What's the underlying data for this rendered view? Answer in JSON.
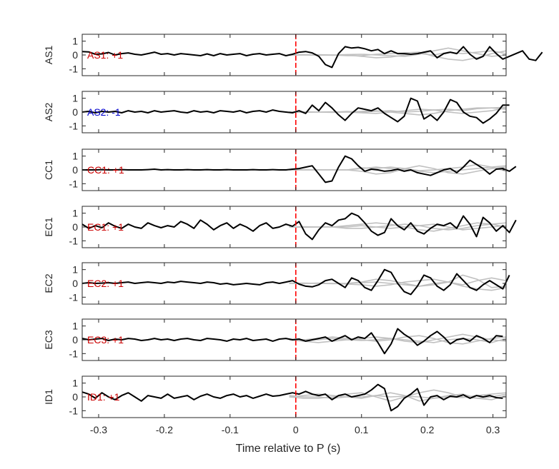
{
  "colors": {
    "main_trace": "#000000",
    "background_traces": "#c0c0c0",
    "marker_line": "#ff0000",
    "positive_annotation": "#cc0000",
    "negative_annotation": "#0000cc",
    "axis": "#262626"
  },
  "chart_data": {
    "type": "line",
    "layout": "stacked-panels",
    "xlabel": "Time relative to P (s)",
    "xlim": [
      -0.325,
      0.32
    ],
    "xticks": [
      -0.3,
      -0.2,
      -0.1,
      0,
      0.1,
      0.2,
      0.3
    ],
    "xtick_labels": [
      "-0.3",
      "-0.2",
      "-0.1",
      "0",
      "0.1",
      "0.2",
      "0.3"
    ],
    "ylim": [
      -1.5,
      1.5
    ],
    "yticks": [
      -1,
      0,
      1
    ],
    "ytick_labels": [
      "-1",
      "0",
      "1"
    ],
    "marker_x": 0,
    "x_start": -0.325,
    "x_step": 0.01,
    "panels": [
      {
        "ylabel": "AS1",
        "annotation": "AS1: +1",
        "polarity": "positive",
        "main": [
          0.25,
          0.22,
          0.05,
          0.08,
          0.18,
          0.0,
          0.1,
          0.15,
          0.05,
          0.0,
          0.1,
          0.2,
          0.05,
          0.1,
          0.0,
          0.1,
          0.05,
          0.0,
          -0.05,
          0.08,
          -0.05,
          0.1,
          0.0,
          0.05,
          0.1,
          -0.05,
          0.05,
          0.1,
          0.0,
          0.05,
          0.1,
          -0.05,
          0.05,
          0.2,
          0.25,
          0.15,
          -0.1,
          -0.7,
          -0.9,
          0.1,
          0.6,
          0.5,
          0.55,
          0.45,
          0.3,
          0.4,
          0.1,
          0.3,
          0.1,
          0.1,
          0.05,
          0.1,
          0.2,
          0.3,
          -0.2,
          0.1,
          0.2,
          0.1,
          0.6,
          0.05,
          -0.3,
          -0.1,
          0.6,
          0.1,
          -0.3,
          -0.1,
          0.1,
          0.3,
          -0.3,
          -0.4,
          0.2
        ],
        "background": [
          [
            0.02,
            0.0,
            -0.02,
            0.0,
            0.03,
            0.05,
            0.0,
            -0.05,
            -0.1,
            0.05,
            0.3,
            0.5,
            0.3,
            0.1,
            -0.1,
            0.0
          ],
          [
            -0.02,
            0.0,
            0.02,
            0.0,
            -0.05,
            -0.05,
            0.05,
            0.1,
            0.15,
            0.2,
            -0.1,
            -0.3,
            -0.4,
            -0.2,
            0.1,
            0.3
          ],
          [
            0.0,
            0.02,
            0.0,
            -0.02,
            0.0,
            -0.1,
            -0.2,
            -0.15,
            0.0,
            0.1,
            0.0,
            0.2,
            0.1,
            0.2,
            0.3,
            0.1
          ]
        ]
      },
      {
        "ylabel": "AS2",
        "annotation": "AS2: -1",
        "polarity": "negative",
        "main": [
          0.0,
          0.05,
          -0.05,
          0.05,
          0.0,
          0.05,
          -0.05,
          0.1,
          0.0,
          0.05,
          -0.05,
          0.1,
          0.0,
          0.05,
          0.1,
          0.0,
          -0.05,
          0.1,
          0.0,
          0.05,
          -0.05,
          0.1,
          0.05,
          0.0,
          0.1,
          -0.05,
          0.05,
          0.1,
          0.0,
          0.15,
          0.05,
          0.0,
          -0.05,
          0.1,
          -0.1,
          0.5,
          0.1,
          0.7,
          0.3,
          -0.2,
          -0.6,
          -0.1,
          0.3,
          0.2,
          0.1,
          0.3,
          -0.1,
          -0.4,
          -0.7,
          -0.3,
          1.0,
          0.8,
          -0.5,
          -0.2,
          -0.6,
          0.0,
          0.9,
          0.7,
          0.0,
          -0.3,
          -0.4,
          -0.8,
          -0.5,
          -0.1,
          0.5,
          0.5
        ],
        "background": [
          [
            0.0,
            0.02,
            0.0,
            -0.02,
            0.0,
            0.05,
            0.1,
            0.0,
            -0.1,
            -0.2,
            -0.1,
            0.1,
            0.2,
            0.3,
            0.3,
            0.2
          ],
          [
            0.0,
            -0.02,
            0.0,
            0.02,
            0.0,
            -0.05,
            -0.1,
            0.0,
            0.1,
            0.2,
            0.15,
            0.0,
            -0.1,
            0.0,
            0.1,
            0.3
          ],
          [
            0.02,
            0.0,
            0.0,
            0.0,
            0.05,
            0.0,
            0.05,
            0.1,
            0.0,
            0.05,
            0.15,
            0.2,
            0.1,
            0.25,
            0.3,
            0.35
          ]
        ]
      },
      {
        "ylabel": "CC1",
        "annotation": "CC1: +1",
        "polarity": "positive",
        "main": [
          0.0,
          0.0,
          0.0,
          0.02,
          0.0,
          0.0,
          0.02,
          0.0,
          0.0,
          0.0,
          0.02,
          0.05,
          0.0,
          0.02,
          0.0,
          0.0,
          0.02,
          0.0,
          0.0,
          0.02,
          0.0,
          0.0,
          0.02,
          0.0,
          0.0,
          0.0,
          0.02,
          0.0,
          0.0,
          0.02,
          0.0,
          0.0,
          0.05,
          0.1,
          0.2,
          0.3,
          -0.3,
          -0.9,
          -0.8,
          0.2,
          1.0,
          0.8,
          0.3,
          -0.1,
          0.05,
          0.0,
          -0.1,
          -0.05,
          0.05,
          -0.1,
          0.0,
          -0.2,
          -0.3,
          -0.4,
          -0.2,
          0.0,
          0.1,
          -0.2,
          0.2,
          0.7,
          0.4,
          0.1,
          -0.3,
          0.05,
          0.1,
          -0.1,
          0.25
        ],
        "background": [
          [
            0.0,
            0.0,
            0.01,
            0.0,
            0.0,
            0.1,
            0.2,
            0.1,
            0.0,
            -0.1,
            -0.2,
            -0.1,
            0.0,
            0.1,
            0.2,
            0.3
          ],
          [
            0.0,
            0.01,
            0.0,
            0.0,
            0.0,
            -0.1,
            -0.3,
            -0.2,
            0.1,
            0.3,
            0.1,
            -0.2,
            -0.3,
            -0.1,
            0.1,
            0.2
          ],
          [
            0.0,
            0.0,
            0.0,
            0.01,
            0.0,
            0.15,
            0.1,
            0.2,
            0.1,
            -0.05,
            0.0,
            0.1,
            0.2,
            0.4,
            0.2,
            -0.1
          ]
        ]
      },
      {
        "ylabel": "EC1",
        "annotation": "EC1: +1",
        "polarity": "positive",
        "main": [
          0.2,
          -0.1,
          0.1,
          -0.05,
          0.3,
          0.05,
          -0.1,
          0.2,
          0.0,
          -0.1,
          0.3,
          0.1,
          -0.05,
          0.1,
          0.0,
          0.4,
          0.2,
          -0.1,
          0.5,
          0.2,
          -0.2,
          0.1,
          0.3,
          -0.1,
          0.2,
          0.0,
          -0.3,
          0.1,
          0.3,
          -0.1,
          0.0,
          0.2,
          0.05,
          0.4,
          -0.5,
          -0.9,
          -0.2,
          0.3,
          0.1,
          0.5,
          0.6,
          1.0,
          0.8,
          0.3,
          -0.3,
          -0.6,
          -0.4,
          0.6,
          0.1,
          -0.2,
          0.3,
          -0.3,
          -0.5,
          -0.1,
          0.2,
          0.1,
          0.3,
          -0.1,
          0.8,
          0.2,
          -0.7,
          0.7,
          0.3,
          -0.3,
          0.1,
          -0.4,
          0.5
        ],
        "background": [
          [
            0.0,
            0.02,
            0.0,
            0.0,
            0.1,
            0.2,
            0.3,
            0.2,
            0.0,
            -0.2,
            -0.3,
            -0.1,
            0.1,
            0.3,
            0.2,
            0.0
          ],
          [
            0.0,
            -0.02,
            0.0,
            0.0,
            -0.1,
            -0.1,
            0.0,
            0.1,
            0.2,
            0.1,
            -0.1,
            -0.2,
            -0.1,
            0.1,
            0.2,
            0.3
          ],
          [
            0.02,
            0.0,
            0.0,
            0.02,
            0.0,
            0.1,
            0.0,
            -0.1,
            0.0,
            0.1,
            0.2,
            0.0,
            -0.2,
            -0.1,
            0.0,
            0.1
          ]
        ]
      },
      {
        "ylabel": "EC2",
        "annotation": "EC2: +1",
        "polarity": "positive",
        "main": [
          0.0,
          0.05,
          0.0,
          0.02,
          0.05,
          0.0,
          0.05,
          0.1,
          0.0,
          0.05,
          0.1,
          0.05,
          0.0,
          0.1,
          0.05,
          0.15,
          0.1,
          0.05,
          0.0,
          0.1,
          0.05,
          -0.05,
          0.0,
          -0.1,
          -0.05,
          0.0,
          -0.05,
          -0.1,
          0.05,
          0.1,
          0.0,
          0.1,
          0.2,
          -0.05,
          -0.2,
          -0.25,
          -0.1,
          0.2,
          0.3,
          0.0,
          -0.3,
          0.4,
          0.2,
          -0.3,
          -0.5,
          0.2,
          1.0,
          0.8,
          0.0,
          -0.6,
          -0.8,
          -0.2,
          0.6,
          0.4,
          -0.2,
          -0.5,
          -0.1,
          0.7,
          0.2,
          -0.3,
          -0.5,
          -0.1,
          0.2,
          -0.1,
          -0.4,
          0.6
        ],
        "background": [
          [
            0.0,
            0.0,
            0.02,
            0.0,
            0.0,
            0.1,
            0.3,
            0.2,
            0.0,
            -0.2,
            -0.1,
            0.1,
            0.6,
            0.3,
            -0.3,
            -0.2
          ],
          [
            0.0,
            0.02,
            0.0,
            0.0,
            -0.05,
            -0.1,
            -0.2,
            -0.1,
            0.1,
            0.2,
            0.3,
            0.1,
            -0.1,
            0.2,
            0.4,
            0.2
          ],
          [
            0.02,
            0.0,
            0.0,
            -0.02,
            0.0,
            0.05,
            0.1,
            0.0,
            -0.1,
            -0.2,
            0.0,
            0.1,
            -0.2,
            -0.4,
            -0.5,
            -0.3
          ]
        ]
      },
      {
        "ylabel": "EC3",
        "annotation": "EC3: +1",
        "polarity": "positive",
        "main": [
          0.1,
          0.0,
          0.05,
          0.1,
          -0.05,
          0.05,
          0.0,
          0.1,
          0.05,
          -0.05,
          0.0,
          0.1,
          0.0,
          0.05,
          -0.05,
          0.05,
          0.1,
          0.0,
          -0.05,
          0.1,
          0.05,
          0.0,
          -0.1,
          0.05,
          0.0,
          0.1,
          -0.05,
          0.0,
          0.05,
          -0.1,
          0.05,
          0.1,
          0.0,
          0.05,
          -0.1,
          0.0,
          0.1,
          0.2,
          -0.1,
          0.1,
          0.3,
          0.0,
          0.2,
          0.1,
          0.5,
          -0.2,
          -1.0,
          -0.3,
          0.8,
          0.4,
          0.1,
          -0.4,
          -0.1,
          0.3,
          0.6,
          0.2,
          -0.3,
          0.0,
          0.1,
          -0.1,
          0.3,
          0.1,
          -0.2,
          0.3,
          0.25
        ],
        "background": [
          [
            0.0,
            0.0,
            0.1,
            0.2,
            0.1,
            0.0,
            -0.1,
            0.0,
            0.2,
            0.3,
            0.1,
            -0.2,
            -0.3,
            -0.1,
            0.1,
            0.2
          ],
          [
            0.0,
            -0.1,
            -0.2,
            -0.1,
            0.0,
            0.1,
            0.2,
            0.1,
            -0.1,
            -0.2,
            0.0,
            0.2,
            0.4,
            0.2,
            0.0,
            -0.1
          ],
          [
            0.05,
            0.0,
            0.0,
            0.1,
            0.0,
            -0.05,
            0.0,
            0.1,
            0.0,
            -0.1,
            -0.2,
            0.0,
            0.1,
            0.0,
            -0.2,
            0.1
          ]
        ]
      },
      {
        "ylabel": "ID1",
        "annotation": "ID1: +1",
        "polarity": "positive",
        "main": [
          0.35,
          0.2,
          -0.1,
          0.3,
          0.0,
          -0.2,
          0.1,
          0.3,
          0.0,
          -0.3,
          0.1,
          0.0,
          -0.1,
          0.2,
          -0.1,
          0.0,
          0.1,
          -0.2,
          0.05,
          0.2,
          0.0,
          -0.1,
          0.1,
          0.2,
          0.0,
          0.1,
          -0.1,
          0.05,
          0.2,
          0.05,
          0.1,
          0.2,
          0.3,
          0.2,
          0.4,
          0.2,
          0.1,
          0.2,
          -0.2,
          0.1,
          0.2,
          0.0,
          0.1,
          0.2,
          0.5,
          0.9,
          0.6,
          -1.0,
          -0.7,
          -0.1,
          0.2,
          0.6,
          -0.6,
          0.0,
          0.1,
          -0.2,
          0.05,
          0.0,
          0.15,
          -0.1,
          0.1,
          0.0,
          0.1,
          -0.05,
          -0.1
        ],
        "background": [
          [
            0.0,
            0.1,
            0.2,
            0.1,
            0.0,
            -0.1,
            0.1,
            0.3,
            0.1,
            -0.3,
            -0.1,
            0.1,
            0.2,
            -0.1,
            -0.2,
            0.1
          ],
          [
            0.0,
            -0.1,
            -0.1,
            0.0,
            0.2,
            0.3,
            0.0,
            -0.3,
            0.0,
            0.3,
            0.5,
            0.3,
            0.0,
            -0.1,
            0.0,
            0.2
          ],
          [
            0.1,
            0.0,
            0.0,
            -0.1,
            0.0,
            0.0,
            0.1,
            0.0,
            0.05,
            0.0,
            -0.1,
            0.0,
            -0.05,
            0.1,
            0.2,
            0.3
          ]
        ]
      }
    ]
  }
}
